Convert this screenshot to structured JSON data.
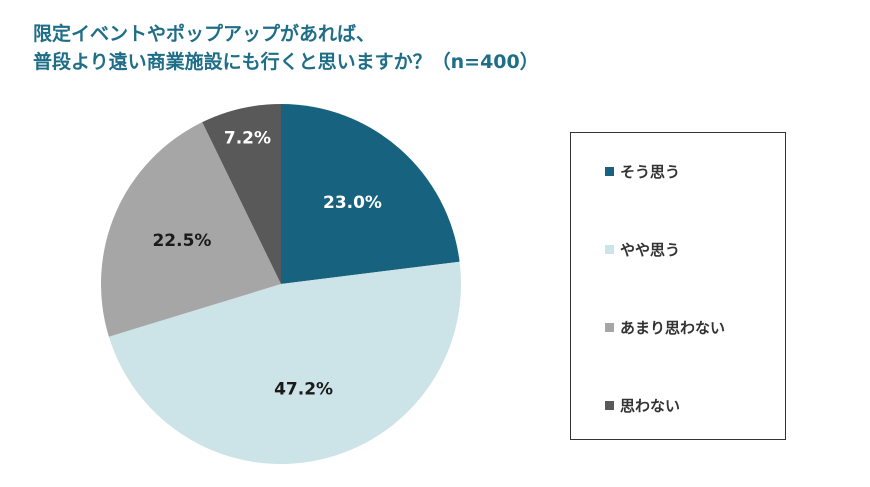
{
  "title_lines": [
    "限定イベントやポップアップがあれば、",
    "普段より遠い商業施設にも行くと思いますか？（n=400）"
  ],
  "chart_data": {
    "type": "pie",
    "title": "限定イベントやポップアップがあれば、普段より遠い商業施設にも行くと思いますか？（n=400）",
    "categories": [
      "そう思う",
      "やや思う",
      "あまり思わない",
      "思わない"
    ],
    "values": [
      23.0,
      47.2,
      22.5,
      7.2
    ],
    "value_labels": [
      "23.0%",
      "47.2%",
      "22.5%",
      "7.2%"
    ],
    "colors": [
      "#17627f",
      "#cce3e8",
      "#a6a6a6",
      "#595959"
    ],
    "label_colors": [
      "#ffffff",
      "#1a1a1a",
      "#1a1a1a",
      "#ffffff"
    ],
    "legend_position": "right"
  }
}
